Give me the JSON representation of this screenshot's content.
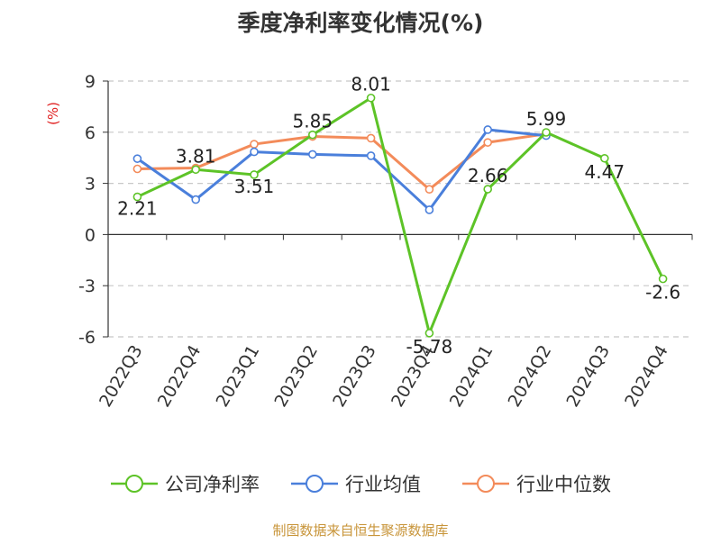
{
  "chart_data": {
    "type": "line",
    "title": "季度净利率变化情况(%)",
    "ylabel": "(%)",
    "xlabel": "",
    "categories": [
      "2022Q3",
      "2022Q4",
      "2023Q1",
      "2023Q2",
      "2023Q3",
      "2023Q4",
      "2024Q1",
      "2024Q2",
      "2024Q3",
      "2024Q4"
    ],
    "yticks": [
      9,
      6,
      3,
      0,
      -3,
      -6
    ],
    "ylim": [
      -6,
      9
    ],
    "grid": true,
    "legend_position": "bottom",
    "series": [
      {
        "name": "公司净利率",
        "color": "#5dc327",
        "values": [
          2.21,
          3.81,
          3.51,
          5.85,
          8.01,
          -5.78,
          2.66,
          5.99,
          4.47,
          -2.6
        ],
        "labels": [
          "2.21",
          "3.81",
          "3.51",
          "5.85",
          "8.01",
          "-5.78",
          "2.66",
          "5.99",
          "4.47",
          "-2.6"
        ]
      },
      {
        "name": "行业均值",
        "color": "#4a7fdb",
        "values": [
          4.45,
          2.05,
          4.85,
          4.7,
          4.62,
          1.45,
          6.15,
          5.8,
          null,
          null
        ]
      },
      {
        "name": "行业中位数",
        "color": "#f38b5a",
        "values": [
          3.85,
          3.9,
          5.3,
          5.75,
          5.65,
          2.65,
          5.4,
          5.9,
          null,
          null
        ]
      }
    ]
  },
  "source_text": "制图数据来自恒生聚源数据库"
}
